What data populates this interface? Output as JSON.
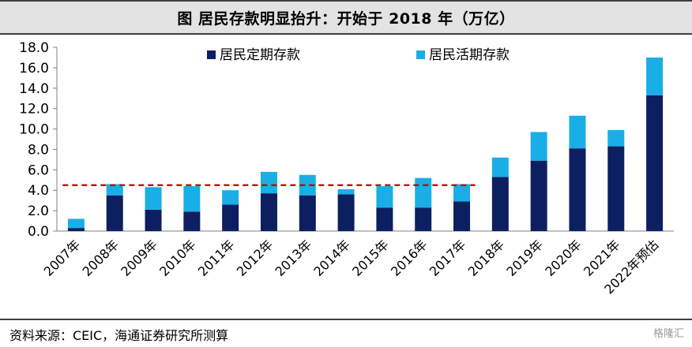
{
  "title": "图  居民存款明显抬升：开始于 2018 年（万亿）",
  "source": "资料来源：CEIC，海通证券研究所测算",
  "watermark": "格隆汇",
  "colors": {
    "fixed": "#0c1f61",
    "demand": "#1aaee6",
    "reference": "#c00000"
  },
  "chart_data": {
    "type": "bar",
    "stacked": true,
    "categories": [
      "2007年",
      "2008年",
      "2009年",
      "2010年",
      "2011年",
      "2012年",
      "2013年",
      "2014年",
      "2015年",
      "2016年",
      "2017年",
      "2018年",
      "2019年",
      "2020年",
      "2021年",
      "2022年预估"
    ],
    "series": [
      {
        "name": "居民定期存款",
        "values": [
          0.3,
          3.5,
          2.1,
          1.9,
          2.6,
          3.7,
          3.5,
          3.6,
          2.3,
          2.3,
          2.9,
          5.3,
          6.9,
          8.1,
          8.3,
          13.3
        ]
      },
      {
        "name": "居民活期存款",
        "values": [
          0.9,
          1.1,
          2.2,
          2.5,
          1.4,
          2.1,
          2.0,
          0.5,
          2.1,
          2.9,
          1.7,
          1.9,
          2.8,
          3.2,
          1.6,
          3.7
        ]
      }
    ],
    "ylim": [
      0,
      18
    ],
    "yticks": [
      "0.0",
      "2.0",
      "4.0",
      "6.0",
      "8.0",
      "10.0",
      "12.0",
      "14.0",
      "16.0",
      "18.0"
    ],
    "reference_line": {
      "value": 4.5,
      "from_category": 0,
      "to_category": 10
    },
    "legend": "top-center"
  }
}
